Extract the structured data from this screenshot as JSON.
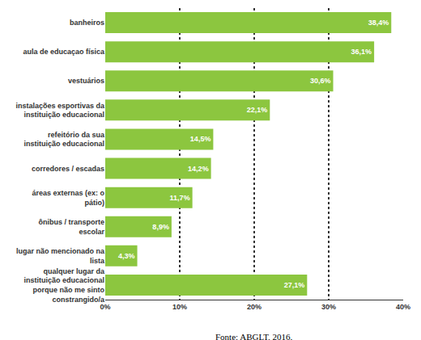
{
  "chart_data": {
    "type": "bar",
    "orientation": "horizontal",
    "categories": [
      "banheiros",
      "aula de educaçao física",
      "vestuários",
      "instalações esportivas da instituição educacional",
      "refeitório da sua instituição educacional",
      "corredores / escadas",
      "áreas externas (ex: o pátio)",
      "ônibus / transporte escolar",
      "lugar não mencionado na lista",
      "qualquer lugar da instituição educacional porque não me sinto constrangido/a"
    ],
    "values": [
      38.4,
      36.1,
      30.6,
      22.1,
      14.5,
      14.2,
      11.7,
      8.9,
      4.3,
      27.1
    ],
    "value_labels": [
      "38,4%",
      "36,1%",
      "30,6%",
      "22,1%",
      "14,5%",
      "14,2%",
      "11,7%",
      "8,9%",
      "4,3%",
      "27,1%"
    ],
    "data_labels": true,
    "color": "#8cc63f",
    "xlim": [
      0,
      40
    ],
    "xticks": [
      {
        "value": 0,
        "label": "0%"
      },
      {
        "value": 10,
        "label": "10%"
      },
      {
        "value": 20,
        "label": "20%"
      },
      {
        "value": 30,
        "label": "30%"
      },
      {
        "value": 40,
        "label": "40%"
      }
    ],
    "grid": true,
    "caption": "Fonte: ABGLT, 2016."
  }
}
